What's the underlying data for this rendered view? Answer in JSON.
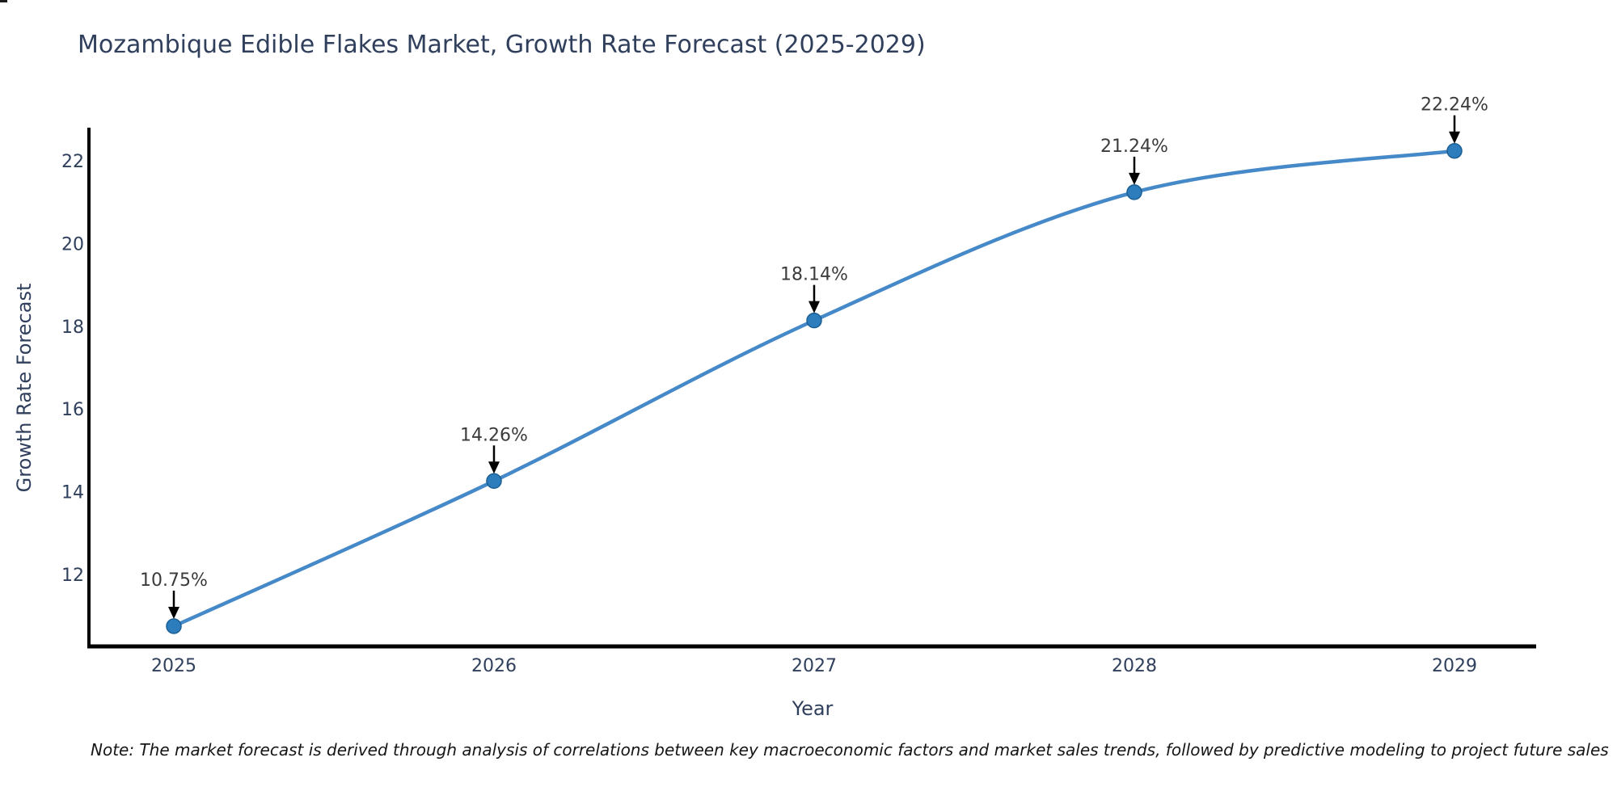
{
  "chart": {
    "title": "Mozambique Edible Flakes Market, Growth Rate Forecast (2025-2029)",
    "note": "Note: The market forecast is derived through analysis of correlations between key macroeconomic factors and market sales trends, followed by predictive modeling to project future sales",
    "colors": {
      "line": "#4589c8",
      "marker_fill": "#2d7cbc",
      "marker_edge": "#1b5f94",
      "axis_text": "#2f3f5c",
      "annotation_text": "#3b3b3b",
      "axis_line": "#000000",
      "arrow": "#000000",
      "background": "#ffffff"
    }
  },
  "chart_data": {
    "type": "line",
    "title": "Mozambique Edible Flakes Market, Growth Rate Forecast (2025-2029)",
    "x": [
      2025,
      2026,
      2027,
      2028,
      2029
    ],
    "series": [
      {
        "name": "Growth Rate Forecast",
        "values": [
          10.75,
          14.26,
          18.14,
          21.24,
          22.24
        ]
      }
    ],
    "point_labels": [
      "10.75%",
      "14.26%",
      "18.14%",
      "21.24%",
      "22.24%"
    ],
    "xlabel": "Year",
    "ylabel": "Growth Rate Forecast",
    "yticks": [
      12,
      14,
      16,
      18,
      20,
      22
    ],
    "ylim": [
      10.2,
      22.8
    ],
    "grid": false,
    "legend": "none",
    "marker": "circle",
    "annotations": "arrow-down-to-point"
  }
}
